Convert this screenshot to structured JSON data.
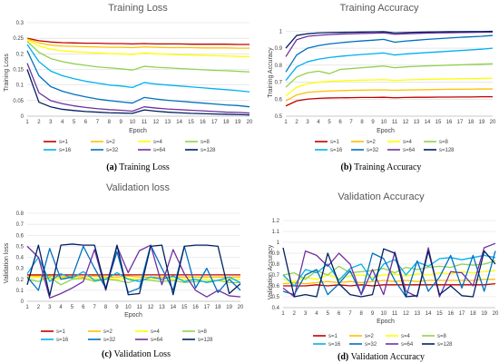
{
  "legend_entries": [
    "s=1",
    "s=2",
    "s=4",
    "s=8",
    "s=16",
    "s=32",
    "s=64",
    "s=128"
  ],
  "series_colors": [
    "#c00000",
    "#ffc000",
    "#ffff00",
    "#92d050",
    "#00b0f0",
    "#0070c0",
    "#7030a0",
    "#002060"
  ],
  "chart_data": [
    {
      "type": "line",
      "title": "Training Loss",
      "xlabel": "Epoch",
      "ylabel": "Training Loss",
      "x": [
        1,
        2,
        3,
        4,
        5,
        6,
        7,
        8,
        9,
        10,
        11,
        12,
        13,
        14,
        15,
        16,
        17,
        18,
        19,
        20
      ],
      "ylim": [
        0,
        0.3
      ],
      "yticks": [
        "0",
        "0.05",
        "0.1",
        "0.15",
        "0.2",
        "0.25",
        "0.3"
      ],
      "caption_label": "(a)",
      "caption_text": " Training Loss",
      "series": [
        {
          "name": "s=1",
          "values": [
            0.25,
            0.242,
            0.238,
            0.236,
            0.235,
            0.234,
            0.234,
            0.233,
            0.233,
            0.232,
            0.233,
            0.232,
            0.232,
            0.232,
            0.231,
            0.231,
            0.231,
            0.231,
            0.23,
            0.23
          ]
        },
        {
          "name": "s=2",
          "values": [
            0.248,
            0.235,
            0.228,
            0.225,
            0.224,
            0.223,
            0.222,
            0.221,
            0.221,
            0.22,
            0.222,
            0.221,
            0.22,
            0.22,
            0.22,
            0.219,
            0.219,
            0.219,
            0.218,
            0.218
          ]
        },
        {
          "name": "s=4",
          "values": [
            0.245,
            0.225,
            0.215,
            0.21,
            0.207,
            0.205,
            0.203,
            0.201,
            0.2,
            0.198,
            0.203,
            0.2,
            0.199,
            0.197,
            0.196,
            0.195,
            0.194,
            0.193,
            0.192,
            0.191
          ]
        },
        {
          "name": "s=8",
          "values": [
            0.24,
            0.205,
            0.185,
            0.175,
            0.168,
            0.163,
            0.158,
            0.155,
            0.152,
            0.148,
            0.16,
            0.157,
            0.155,
            0.153,
            0.151,
            0.149,
            0.147,
            0.146,
            0.144,
            0.142
          ]
        },
        {
          "name": "s=16",
          "values": [
            0.23,
            0.175,
            0.145,
            0.13,
            0.12,
            0.112,
            0.106,
            0.1,
            0.097,
            0.092,
            0.108,
            0.103,
            0.1,
            0.097,
            0.094,
            0.091,
            0.088,
            0.085,
            0.082,
            0.078
          ]
        },
        {
          "name": "s=32",
          "values": [
            0.21,
            0.13,
            0.095,
            0.08,
            0.07,
            0.062,
            0.055,
            0.05,
            0.046,
            0.042,
            0.06,
            0.055,
            0.051,
            0.048,
            0.045,
            0.042,
            0.039,
            0.036,
            0.034,
            0.03
          ]
        },
        {
          "name": "s=64",
          "values": [
            0.17,
            0.075,
            0.05,
            0.04,
            0.033,
            0.028,
            0.024,
            0.021,
            0.019,
            0.016,
            0.03,
            0.026,
            0.023,
            0.021,
            0.019,
            0.017,
            0.015,
            0.013,
            0.012,
            0.01
          ]
        },
        {
          "name": "s=128",
          "values": [
            0.15,
            0.045,
            0.03,
            0.022,
            0.018,
            0.015,
            0.013,
            0.011,
            0.01,
            0.009,
            0.02,
            0.016,
            0.013,
            0.011,
            0.009,
            0.008,
            0.007,
            0.006,
            0.005,
            0.004
          ]
        }
      ]
    },
    {
      "type": "line",
      "title": "Training Accuracy",
      "xlabel": "Epoch",
      "ylabel": "Training Accuracy",
      "x": [
        1,
        2,
        3,
        4,
        5,
        6,
        7,
        8,
        9,
        10,
        11,
        12,
        13,
        14,
        15,
        16,
        17,
        18,
        19,
        20
      ],
      "ylim": [
        0.5,
        1.05
      ],
      "yticks": [
        "0.5",
        "0.6",
        "0.7",
        "0.8",
        "0.9",
        "1"
      ],
      "caption_label": "(b)",
      "caption_text": " Training Accuracy",
      "series": [
        {
          "name": "s=1",
          "values": [
            0.56,
            0.59,
            0.6,
            0.605,
            0.607,
            0.608,
            0.609,
            0.61,
            0.61,
            0.611,
            0.608,
            0.61,
            0.611,
            0.611,
            0.612,
            0.612,
            0.613,
            0.613,
            0.614,
            0.614
          ]
        },
        {
          "name": "s=2",
          "values": [
            0.59,
            0.625,
            0.64,
            0.645,
            0.648,
            0.65,
            0.652,
            0.653,
            0.654,
            0.655,
            0.652,
            0.654,
            0.655,
            0.656,
            0.657,
            0.658,
            0.658,
            0.659,
            0.66,
            0.66
          ]
        },
        {
          "name": "s=4",
          "values": [
            0.62,
            0.67,
            0.69,
            0.7,
            0.705,
            0.708,
            0.71,
            0.712,
            0.713,
            0.715,
            0.71,
            0.713,
            0.715,
            0.717,
            0.718,
            0.719,
            0.72,
            0.721,
            0.722,
            0.723
          ]
        },
        {
          "name": "s=8",
          "values": [
            0.67,
            0.73,
            0.755,
            0.765,
            0.75,
            0.775,
            0.78,
            0.785,
            0.79,
            0.795,
            0.785,
            0.79,
            0.793,
            0.796,
            0.798,
            0.8,
            0.802,
            0.804,
            0.806,
            0.808
          ]
        },
        {
          "name": "s=16",
          "values": [
            0.71,
            0.79,
            0.82,
            0.835,
            0.845,
            0.852,
            0.858,
            0.863,
            0.867,
            0.872,
            0.86,
            0.866,
            0.87,
            0.874,
            0.878,
            0.882,
            0.886,
            0.89,
            0.894,
            0.9
          ]
        },
        {
          "name": "s=32",
          "values": [
            0.76,
            0.86,
            0.9,
            0.915,
            0.925,
            0.932,
            0.938,
            0.943,
            0.947,
            0.952,
            0.935,
            0.942,
            0.947,
            0.952,
            0.956,
            0.96,
            0.964,
            0.967,
            0.97,
            0.975
          ]
        },
        {
          "name": "s=64",
          "values": [
            0.85,
            0.95,
            0.97,
            0.976,
            0.98,
            0.983,
            0.985,
            0.987,
            0.988,
            0.99,
            0.982,
            0.985,
            0.987,
            0.989,
            0.99,
            0.991,
            0.992,
            0.993,
            0.994,
            0.995
          ]
        },
        {
          "name": "s=128",
          "values": [
            0.9,
            0.975,
            0.985,
            0.99,
            0.992,
            0.993,
            0.994,
            0.995,
            0.996,
            0.997,
            0.99,
            0.992,
            0.994,
            0.995,
            0.996,
            0.997,
            0.997,
            0.998,
            0.998,
            0.999
          ]
        }
      ]
    },
    {
      "type": "line",
      "title": "Validation loss",
      "xlabel": "Epoch",
      "ylabel": "Validation loss",
      "x": [
        1,
        2,
        3,
        4,
        5,
        6,
        7,
        8,
        9,
        10,
        11,
        12,
        13,
        14,
        15,
        16,
        17,
        18,
        19,
        20
      ],
      "ylim": [
        0,
        0.8
      ],
      "yticks": [
        "0",
        "0.1",
        "0.2",
        "0.3",
        "0.4",
        "0.5",
        "0.6",
        "0.7",
        "0.8"
      ],
      "caption_label": "(c)",
      "caption_text": " Validation Loss",
      "series": [
        {
          "name": "s=1",
          "values": [
            0.24,
            0.24,
            0.24,
            0.24,
            0.24,
            0.24,
            0.24,
            0.24,
            0.24,
            0.24,
            0.24,
            0.24,
            0.24,
            0.24,
            0.24,
            0.24,
            0.24,
            0.24,
            0.24,
            0.24
          ]
        },
        {
          "name": "s=2",
          "values": [
            0.23,
            0.23,
            0.23,
            0.22,
            0.23,
            0.22,
            0.23,
            0.22,
            0.22,
            0.23,
            0.22,
            0.22,
            0.22,
            0.22,
            0.22,
            0.22,
            0.22,
            0.22,
            0.22,
            0.22
          ]
        },
        {
          "name": "s=4",
          "values": [
            0.21,
            0.22,
            0.2,
            0.21,
            0.22,
            0.2,
            0.21,
            0.21,
            0.2,
            0.21,
            0.2,
            0.2,
            0.21,
            0.2,
            0.2,
            0.2,
            0.2,
            0.19,
            0.2,
            0.2
          ]
        },
        {
          "name": "s=8",
          "values": [
            0.2,
            0.18,
            0.22,
            0.15,
            0.2,
            0.21,
            0.18,
            0.2,
            0.19,
            0.17,
            0.2,
            0.19,
            0.18,
            0.19,
            0.17,
            0.18,
            0.18,
            0.19,
            0.17,
            0.17
          ]
        },
        {
          "name": "s=16",
          "values": [
            0.25,
            0.4,
            0.18,
            0.25,
            0.21,
            0.27,
            0.19,
            0.2,
            0.26,
            0.2,
            0.18,
            0.22,
            0.2,
            0.23,
            0.18,
            0.2,
            0.17,
            0.19,
            0.22,
            0.17
          ]
        },
        {
          "name": "s=32",
          "values": [
            0.22,
            0.1,
            0.48,
            0.2,
            0.22,
            0.5,
            0.3,
            0.12,
            0.45,
            0.08,
            0.12,
            0.51,
            0.3,
            0.1,
            0.5,
            0.12,
            0.3,
            0.08,
            0.2,
            0.1
          ]
        },
        {
          "name": "s=64",
          "values": [
            0.5,
            0.4,
            0.03,
            0.07,
            0.12,
            0.18,
            0.47,
            0.1,
            0.5,
            0.26,
            0.46,
            0.51,
            0.15,
            0.47,
            0.25,
            0.1,
            0.04,
            0.1,
            0.05,
            0.04
          ]
        },
        {
          "name": "s=128",
          "values": [
            0.15,
            0.51,
            0.05,
            0.51,
            0.52,
            0.51,
            0.51,
            0.11,
            0.51,
            0.06,
            0.07,
            0.5,
            0.51,
            0.06,
            0.5,
            0.51,
            0.51,
            0.5,
            0.07,
            0.16
          ]
        }
      ]
    },
    {
      "type": "line",
      "title": "Validation Accuracy",
      "xlabel": "Epoch",
      "ylabel": "Validation Accuracy",
      "x": [
        1,
        2,
        3,
        4,
        5,
        6,
        7,
        8,
        9,
        10,
        11,
        12,
        13,
        14,
        15,
        16,
        17,
        18,
        19,
        20
      ],
      "ylim": [
        0.4,
        1.2
      ],
      "yticks": [
        "0.4",
        "0.5",
        "0.6",
        "0.7",
        "0.8",
        "0.9",
        "1",
        "1.1",
        "1.2"
      ],
      "caption_label": "(d)",
      "caption_text": " Validation Accuracy",
      "series": [
        {
          "name": "s=1",
          "values": [
            0.6,
            0.6,
            0.6,
            0.61,
            0.6,
            0.61,
            0.6,
            0.61,
            0.6,
            0.61,
            0.61,
            0.61,
            0.61,
            0.61,
            0.61,
            0.61,
            0.61,
            0.61,
            0.61,
            0.62
          ]
        },
        {
          "name": "s=2",
          "values": [
            0.62,
            0.63,
            0.62,
            0.63,
            0.64,
            0.63,
            0.64,
            0.63,
            0.64,
            0.65,
            0.64,
            0.65,
            0.64,
            0.65,
            0.65,
            0.65,
            0.65,
            0.65,
            0.66,
            0.66
          ]
        },
        {
          "name": "s=4",
          "values": [
            0.66,
            0.64,
            0.68,
            0.66,
            0.7,
            0.67,
            0.69,
            0.7,
            0.68,
            0.7,
            0.71,
            0.69,
            0.71,
            0.7,
            0.72,
            0.71,
            0.73,
            0.72,
            0.73,
            0.74
          ]
        },
        {
          "name": "s=8",
          "values": [
            0.7,
            0.72,
            0.66,
            0.74,
            0.7,
            0.78,
            0.72,
            0.73,
            0.74,
            0.76,
            0.72,
            0.77,
            0.75,
            0.77,
            0.78,
            0.77,
            0.8,
            0.79,
            0.8,
            0.83
          ]
        },
        {
          "name": "s=16",
          "values": [
            0.7,
            0.6,
            0.75,
            0.72,
            0.8,
            0.65,
            0.76,
            0.8,
            0.65,
            0.8,
            0.84,
            0.7,
            0.82,
            0.78,
            0.85,
            0.86,
            0.84,
            0.86,
            0.88,
            0.86
          ]
        },
        {
          "name": "s=32",
          "values": [
            0.55,
            0.52,
            0.7,
            0.75,
            0.52,
            0.62,
            0.74,
            0.52,
            0.9,
            0.85,
            0.65,
            0.5,
            0.83,
            0.55,
            0.68,
            0.88,
            0.58,
            0.88,
            0.55,
            0.92
          ]
        },
        {
          "name": "s=64",
          "values": [
            0.58,
            0.5,
            0.92,
            0.88,
            0.78,
            0.9,
            0.8,
            0.52,
            0.75,
            0.52,
            0.91,
            0.55,
            0.5,
            0.95,
            0.5,
            0.73,
            0.72,
            0.6,
            0.95,
            0.99
          ]
        },
        {
          "name": "s=128",
          "values": [
            0.95,
            0.5,
            0.52,
            0.5,
            0.9,
            0.62,
            0.52,
            0.5,
            0.52,
            0.94,
            0.9,
            0.5,
            0.51,
            0.92,
            0.52,
            0.6,
            0.51,
            0.5,
            0.92,
            0.8
          ]
        }
      ]
    }
  ]
}
